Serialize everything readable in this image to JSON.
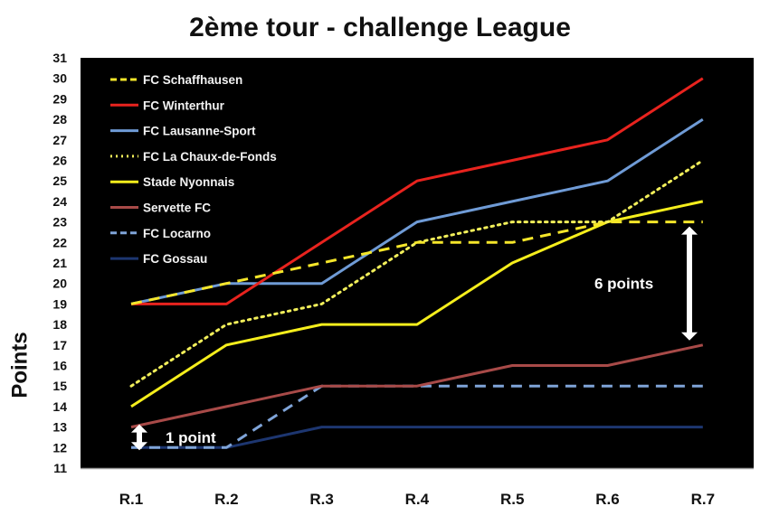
{
  "chart_data": {
    "type": "line",
    "title": "2ème tour - challenge League",
    "xlabel": "",
    "ylabel": "Points",
    "categories": [
      "R.1",
      "R.2",
      "R.3",
      "R.4",
      "R.5",
      "R.6",
      "R.7"
    ],
    "ylim": [
      11,
      31
    ],
    "yticks": [
      11,
      12,
      13,
      14,
      15,
      16,
      17,
      18,
      19,
      20,
      21,
      22,
      23,
      24,
      25,
      26,
      27,
      28,
      29,
      30,
      31
    ],
    "grid": false,
    "background": "#000000",
    "legend_position": "upper-left-inside",
    "series": [
      {
        "name": "FC Schaffhausen",
        "color": "#f5e62a",
        "style": "dashed",
        "values": [
          19,
          20,
          21,
          22,
          22,
          23,
          23
        ]
      },
      {
        "name": "FC Winterthur",
        "color": "#e8231e",
        "style": "solid",
        "values": [
          19,
          19,
          22,
          25,
          26,
          27,
          30
        ]
      },
      {
        "name": "FC Lausanne-Sport",
        "color": "#6f9bd6",
        "style": "solid",
        "values": [
          19,
          20,
          20,
          23,
          24,
          25,
          28
        ]
      },
      {
        "name": "FC La Chaux-de-Fonds",
        "color": "#f2ef5a",
        "style": "dotted",
        "values": [
          15,
          18,
          19,
          22,
          23,
          23,
          26
        ]
      },
      {
        "name": "Stade Nyonnais",
        "color": "#f5ee1c",
        "style": "solid",
        "values": [
          14,
          17,
          18,
          18,
          21,
          23,
          24
        ]
      },
      {
        "name": "Servette FC",
        "color": "#a84a48",
        "style": "solid",
        "values": [
          13,
          14,
          15,
          15,
          16,
          16,
          17
        ],
        "legend_text_color": "#a84a48"
      },
      {
        "name": "FC Locarno",
        "color": "#7fa4d8",
        "style": "dashed",
        "values": [
          12,
          12,
          15,
          15,
          15,
          15,
          15
        ]
      },
      {
        "name": "FC Gossau",
        "color": "#1d3670",
        "style": "solid",
        "values": [
          12,
          12,
          13,
          13,
          13,
          13,
          13
        ]
      }
    ],
    "annotations": [
      {
        "text": "1 point",
        "type": "double-arrow",
        "x": "R.1",
        "from": 12,
        "to": 13
      },
      {
        "text": "6 points",
        "type": "double-arrow",
        "x": "R.7",
        "from": 17,
        "to": 23
      }
    ]
  }
}
